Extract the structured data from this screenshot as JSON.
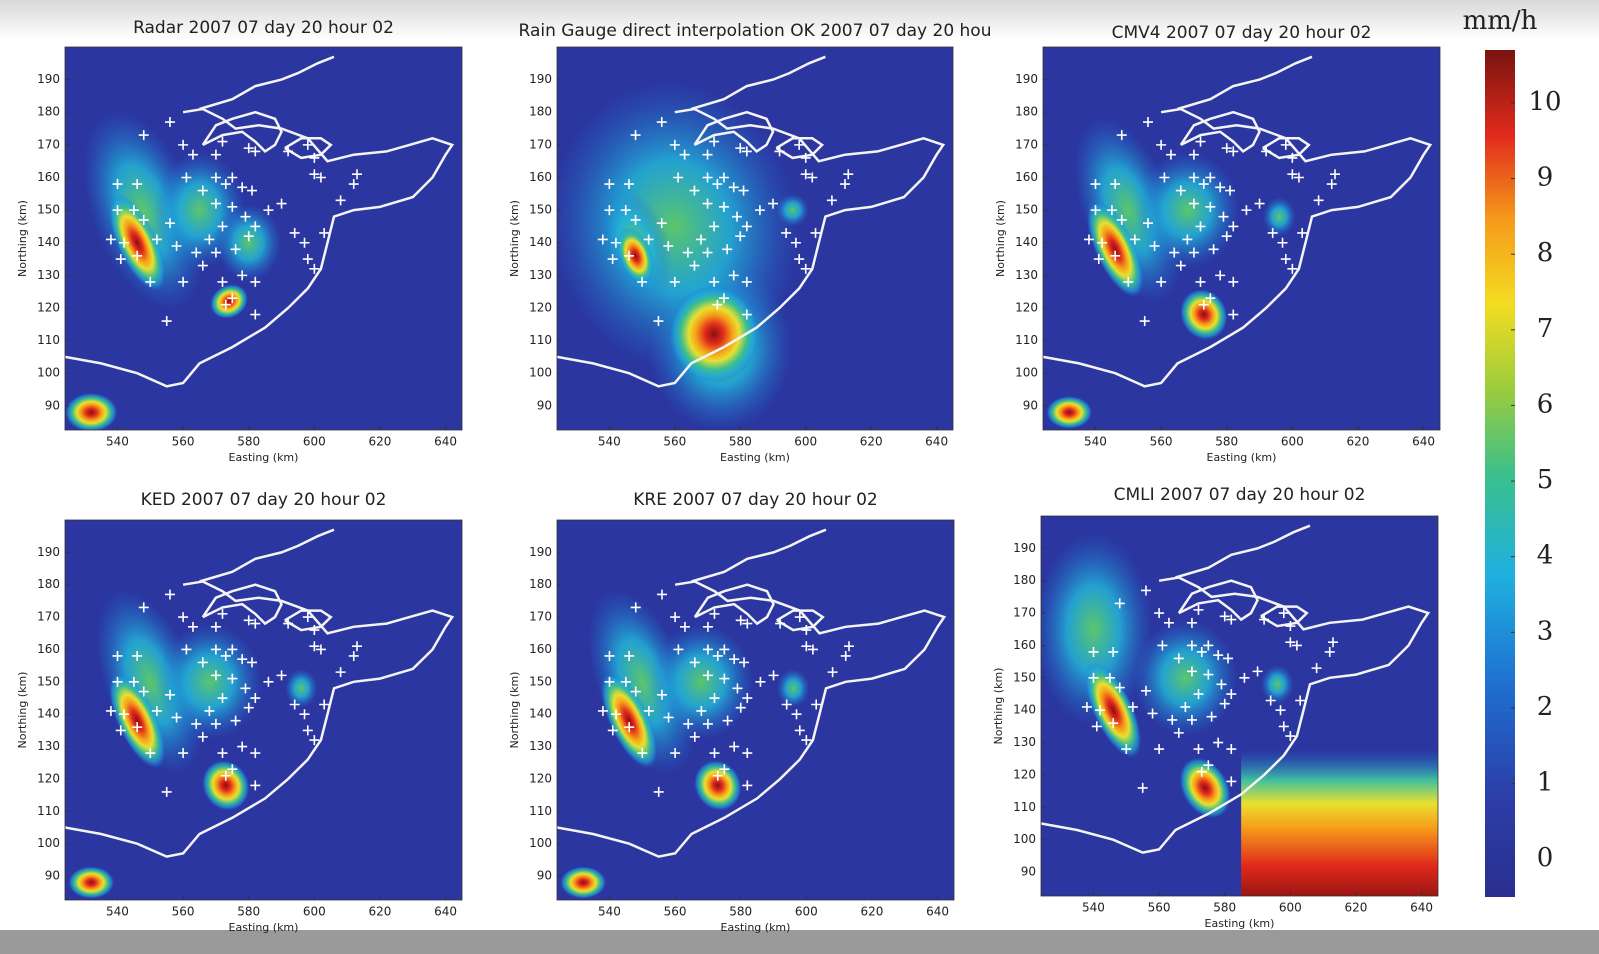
{
  "chart_data": [
    {
      "type": "heatmap",
      "title": "Radar 2007 07 day 20 hour 02",
      "xlabel": "Easting (km)",
      "ylabel": "Northing (km)",
      "xlim": [
        524,
        645
      ],
      "ylim": [
        82.6,
        200
      ],
      "xticks": [
        540,
        560,
        580,
        600,
        620,
        640
      ],
      "yticks": [
        90,
        100,
        110,
        120,
        130,
        140,
        150,
        160,
        170,
        180,
        190
      ]
    },
    {
      "type": "heatmap",
      "title": "Rain Gauge direct interpolation OK 2007 07 day 20 hou",
      "xlabel": "Easting (km)",
      "ylabel": "Northing (km)",
      "xlim": [
        524,
        645
      ],
      "ylim": [
        82.6,
        200
      ],
      "xticks": [
        540,
        560,
        580,
        600,
        620,
        640
      ],
      "yticks": [
        90,
        100,
        110,
        120,
        130,
        140,
        150,
        160,
        170,
        180,
        190
      ]
    },
    {
      "type": "heatmap",
      "title": "CMV4 2007 07 day 20 hour 02",
      "xlabel": "Easting (km)",
      "ylabel": "Northing (km)",
      "xlim": [
        524,
        645
      ],
      "ylim": [
        82.6,
        200
      ],
      "xticks": [
        540,
        560,
        580,
        600,
        620,
        640
      ],
      "yticks": [
        90,
        100,
        110,
        120,
        130,
        140,
        150,
        160,
        170,
        180,
        190
      ]
    },
    {
      "type": "heatmap",
      "title": "KED 2007 07 day 20 hour 02",
      "xlabel": "Easting (km)",
      "ylabel": "Northing (km)",
      "xlim": [
        524,
        645
      ],
      "ylim": [
        82.6,
        200
      ],
      "xticks": [
        540,
        560,
        580,
        600,
        620,
        640
      ],
      "yticks": [
        90,
        100,
        110,
        120,
        130,
        140,
        150,
        160,
        170,
        180,
        190
      ]
    },
    {
      "type": "heatmap",
      "title": "KRE 2007 07 day 20 hour 02",
      "xlabel": "Easting (km)",
      "ylabel": "Northing (km)",
      "xlim": [
        524,
        645
      ],
      "ylim": [
        82.6,
        200
      ],
      "xticks": [
        540,
        560,
        580,
        600,
        620,
        640
      ],
      "yticks": [
        90,
        100,
        110,
        120,
        130,
        140,
        150,
        160,
        170,
        180,
        190
      ]
    },
    {
      "type": "heatmap",
      "title": "CMLI 2007 07 day 20 hour 02",
      "xlabel": "Easting (km)",
      "ylabel": "Northing (km)",
      "xlim": [
        524,
        645
      ],
      "ylim": [
        82.6,
        200
      ],
      "xticks": [
        540,
        560,
        580,
        600,
        620,
        640
      ],
      "yticks": [
        90,
        100,
        110,
        120,
        130,
        140,
        150,
        160,
        170,
        180,
        190
      ]
    }
  ],
  "colorbar": {
    "label": "mm/h",
    "lim": [
      -0.5,
      10.7
    ],
    "ticks": [
      0,
      1,
      2,
      3,
      4,
      5,
      6,
      7,
      8,
      9,
      10
    ]
  }
}
